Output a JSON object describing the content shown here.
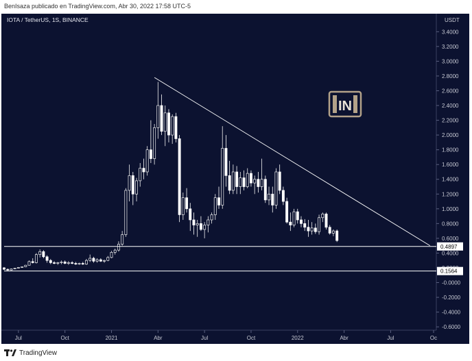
{
  "header": {
    "publish_note": "BenIsaza publicado en TradingView.com, Abr 30, 2022 17:58 UTC-5"
  },
  "footer": {
    "brand": "TradingView"
  },
  "colors": {
    "background": "#0c1230",
    "up_candle": "#f1f1f1",
    "down_candle": "#ffffff",
    "trendline": "#ffffff",
    "level_line": "#ffffff",
    "axis_text": "#c7c9d3",
    "logo": "#b3a289"
  },
  "watermark": {
    "icon": "beincrypto-logo-icon",
    "text": "IN"
  },
  "chart_data": {
    "type": "candlestick",
    "title": "IOTA / TetherUS, 1S, BINANCE",
    "currency_label": "USDT",
    "ylim": [
      -0.6,
      3.6
    ],
    "y_ticks": [
      "3.4000",
      "3.2000",
      "3.0000",
      "2.8000",
      "2.6000",
      "2.4000",
      "2.2000",
      "2.0000",
      "1.8000",
      "1.6000",
      "1.4000",
      "1.2000",
      "1.0000",
      "0.8000",
      "0.6000",
      "0.4000",
      "0.2000",
      "-0.0000",
      "-0.2000",
      "-0.4000",
      "-0.6000"
    ],
    "x_ticks": [
      "Jul",
      "Oct",
      "2021",
      "Abr",
      "Jul",
      "Oct",
      "2022",
      "Abr",
      "Jul",
      "Oc"
    ],
    "x_range_weeks": [
      0,
      120
    ],
    "x_tick_weeks": [
      4,
      17,
      30,
      43,
      56,
      69,
      82,
      95,
      108,
      120
    ],
    "price_labels": [
      {
        "text": "0.4897",
        "value": 0.4897
      },
      {
        "text": "0.1564",
        "value": 0.1564
      }
    ],
    "levels": [
      0.4897,
      0.1564
    ],
    "trendline": {
      "from": {
        "week": 42,
        "price": 2.78
      },
      "to": {
        "week": 119,
        "price": 0.5
      }
    },
    "series": [
      {
        "name": "IOTA/USDT",
        "candles": [
          [
            0,
            0.2,
            0.21,
            0.17,
            0.18
          ],
          [
            1,
            0.18,
            0.19,
            0.16,
            0.17
          ],
          [
            2,
            0.17,
            0.19,
            0.165,
            0.185
          ],
          [
            3,
            0.185,
            0.2,
            0.18,
            0.195
          ],
          [
            4,
            0.195,
            0.21,
            0.19,
            0.205
          ],
          [
            5,
            0.205,
            0.22,
            0.2,
            0.215
          ],
          [
            6,
            0.215,
            0.24,
            0.21,
            0.235
          ],
          [
            7,
            0.235,
            0.3,
            0.23,
            0.285
          ],
          [
            8,
            0.285,
            0.33,
            0.26,
            0.27
          ],
          [
            9,
            0.27,
            0.4,
            0.26,
            0.38
          ],
          [
            10,
            0.38,
            0.45,
            0.34,
            0.42
          ],
          [
            11,
            0.42,
            0.44,
            0.33,
            0.35
          ],
          [
            12,
            0.35,
            0.37,
            0.27,
            0.3
          ],
          [
            13,
            0.3,
            0.32,
            0.25,
            0.27
          ],
          [
            14,
            0.27,
            0.29,
            0.25,
            0.26
          ],
          [
            15,
            0.26,
            0.28,
            0.24,
            0.27
          ],
          [
            16,
            0.27,
            0.3,
            0.25,
            0.28
          ],
          [
            17,
            0.28,
            0.3,
            0.25,
            0.26
          ],
          [
            18,
            0.26,
            0.29,
            0.24,
            0.27
          ],
          [
            19,
            0.27,
            0.29,
            0.25,
            0.26
          ],
          [
            20,
            0.26,
            0.28,
            0.24,
            0.25
          ],
          [
            21,
            0.25,
            0.27,
            0.24,
            0.26
          ],
          [
            22,
            0.26,
            0.28,
            0.24,
            0.25
          ],
          [
            23,
            0.25,
            0.32,
            0.24,
            0.3
          ],
          [
            24,
            0.3,
            0.38,
            0.28,
            0.33
          ],
          [
            25,
            0.33,
            0.35,
            0.27,
            0.29
          ],
          [
            26,
            0.29,
            0.33,
            0.27,
            0.31
          ],
          [
            27,
            0.31,
            0.33,
            0.28,
            0.29
          ],
          [
            28,
            0.29,
            0.31,
            0.27,
            0.3
          ],
          [
            29,
            0.3,
            0.36,
            0.29,
            0.34
          ],
          [
            30,
            0.34,
            0.43,
            0.33,
            0.41
          ],
          [
            31,
            0.41,
            0.46,
            0.38,
            0.44
          ],
          [
            32,
            0.44,
            0.56,
            0.42,
            0.52
          ],
          [
            33,
            0.52,
            0.7,
            0.5,
            0.65
          ],
          [
            34,
            0.65,
            1.28,
            0.62,
            1.25
          ],
          [
            35,
            1.25,
            1.6,
            1.1,
            1.45
          ],
          [
            36,
            1.45,
            1.5,
            1.05,
            1.2
          ],
          [
            37,
            1.2,
            1.42,
            1.1,
            1.38
          ],
          [
            38,
            1.38,
            1.62,
            1.3,
            1.55
          ],
          [
            39,
            1.55,
            1.68,
            1.4,
            1.5
          ],
          [
            40,
            1.5,
            1.85,
            1.45,
            1.8
          ],
          [
            41,
            1.8,
            2.2,
            1.62,
            1.68
          ],
          [
            42,
            1.68,
            2.15,
            1.6,
            2.1
          ],
          [
            43,
            2.1,
            2.72,
            1.95,
            2.4
          ],
          [
            44,
            2.4,
            2.55,
            2.0,
            2.05
          ],
          [
            45,
            2.05,
            2.4,
            1.85,
            2.3
          ],
          [
            46,
            2.3,
            2.35,
            1.9,
            2.0
          ],
          [
            47,
            2.0,
            2.28,
            1.88,
            2.25
          ],
          [
            48,
            2.25,
            2.3,
            1.9,
            1.95
          ],
          [
            49,
            1.95,
            2.0,
            0.82,
            0.92
          ],
          [
            50,
            0.92,
            1.22,
            0.85,
            1.15
          ],
          [
            51,
            1.15,
            1.28,
            0.95,
            1.0
          ],
          [
            52,
            1.0,
            1.08,
            0.7,
            0.85
          ],
          [
            53,
            0.85,
            0.95,
            0.65,
            0.78
          ],
          [
            54,
            0.78,
            0.85,
            0.62,
            0.8
          ],
          [
            55,
            0.8,
            0.9,
            0.7,
            0.72
          ],
          [
            56,
            0.72,
            0.82,
            0.6,
            0.78
          ],
          [
            57,
            0.78,
            0.9,
            0.68,
            0.85
          ],
          [
            58,
            0.85,
            0.95,
            0.8,
            0.92
          ],
          [
            59,
            0.92,
            1.2,
            0.85,
            1.15
          ],
          [
            60,
            1.15,
            1.3,
            1.0,
            1.05
          ],
          [
            61,
            1.05,
            2.12,
            1.0,
            1.82
          ],
          [
            62,
            1.82,
            2.0,
            1.3,
            1.45
          ],
          [
            63,
            1.45,
            1.65,
            1.2,
            1.25
          ],
          [
            64,
            1.25,
            1.6,
            1.2,
            1.5
          ],
          [
            65,
            1.5,
            1.58,
            1.2,
            1.3
          ],
          [
            66,
            1.3,
            1.5,
            1.2,
            1.42
          ],
          [
            67,
            1.42,
            1.52,
            1.25,
            1.3
          ],
          [
            68,
            1.3,
            1.55,
            1.28,
            1.48
          ],
          [
            69,
            1.48,
            1.52,
            1.3,
            1.35
          ],
          [
            70,
            1.35,
            1.45,
            1.2,
            1.4
          ],
          [
            71,
            1.4,
            1.5,
            1.22,
            1.3
          ],
          [
            72,
            1.3,
            1.68,
            1.25,
            1.4
          ],
          [
            73,
            1.4,
            1.45,
            1.08,
            1.12
          ],
          [
            74,
            1.12,
            1.3,
            1.05,
            1.2
          ],
          [
            75,
            1.2,
            1.3,
            0.95,
            1.05
          ],
          [
            76,
            1.05,
            1.55,
            1.0,
            1.5
          ],
          [
            77,
            1.5,
            1.6,
            1.2,
            1.25
          ],
          [
            78,
            1.25,
            1.3,
            1.05,
            1.1
          ],
          [
            79,
            1.1,
            1.15,
            0.8,
            0.82
          ],
          [
            80,
            0.82,
            0.95,
            0.7,
            0.78
          ],
          [
            81,
            0.78,
            1.0,
            0.75,
            0.96
          ],
          [
            82,
            0.96,
            1.0,
            0.8,
            0.85
          ],
          [
            83,
            0.85,
            0.9,
            0.75,
            0.8
          ],
          [
            84,
            0.8,
            0.86,
            0.7,
            0.75
          ],
          [
            85,
            0.75,
            0.85,
            0.62,
            0.7
          ],
          [
            86,
            0.7,
            0.82,
            0.65,
            0.74
          ],
          [
            87,
            0.74,
            0.8,
            0.66,
            0.69
          ],
          [
            88,
            0.69,
            0.92,
            0.65,
            0.88
          ],
          [
            89,
            0.88,
            0.95,
            0.82,
            0.93
          ],
          [
            90,
            0.93,
            0.95,
            0.72,
            0.75
          ],
          [
            91,
            0.75,
            0.78,
            0.65,
            0.67
          ],
          [
            92,
            0.67,
            0.72,
            0.63,
            0.7
          ],
          [
            93,
            0.7,
            0.72,
            0.55,
            0.57
          ]
        ]
      }
    ]
  }
}
